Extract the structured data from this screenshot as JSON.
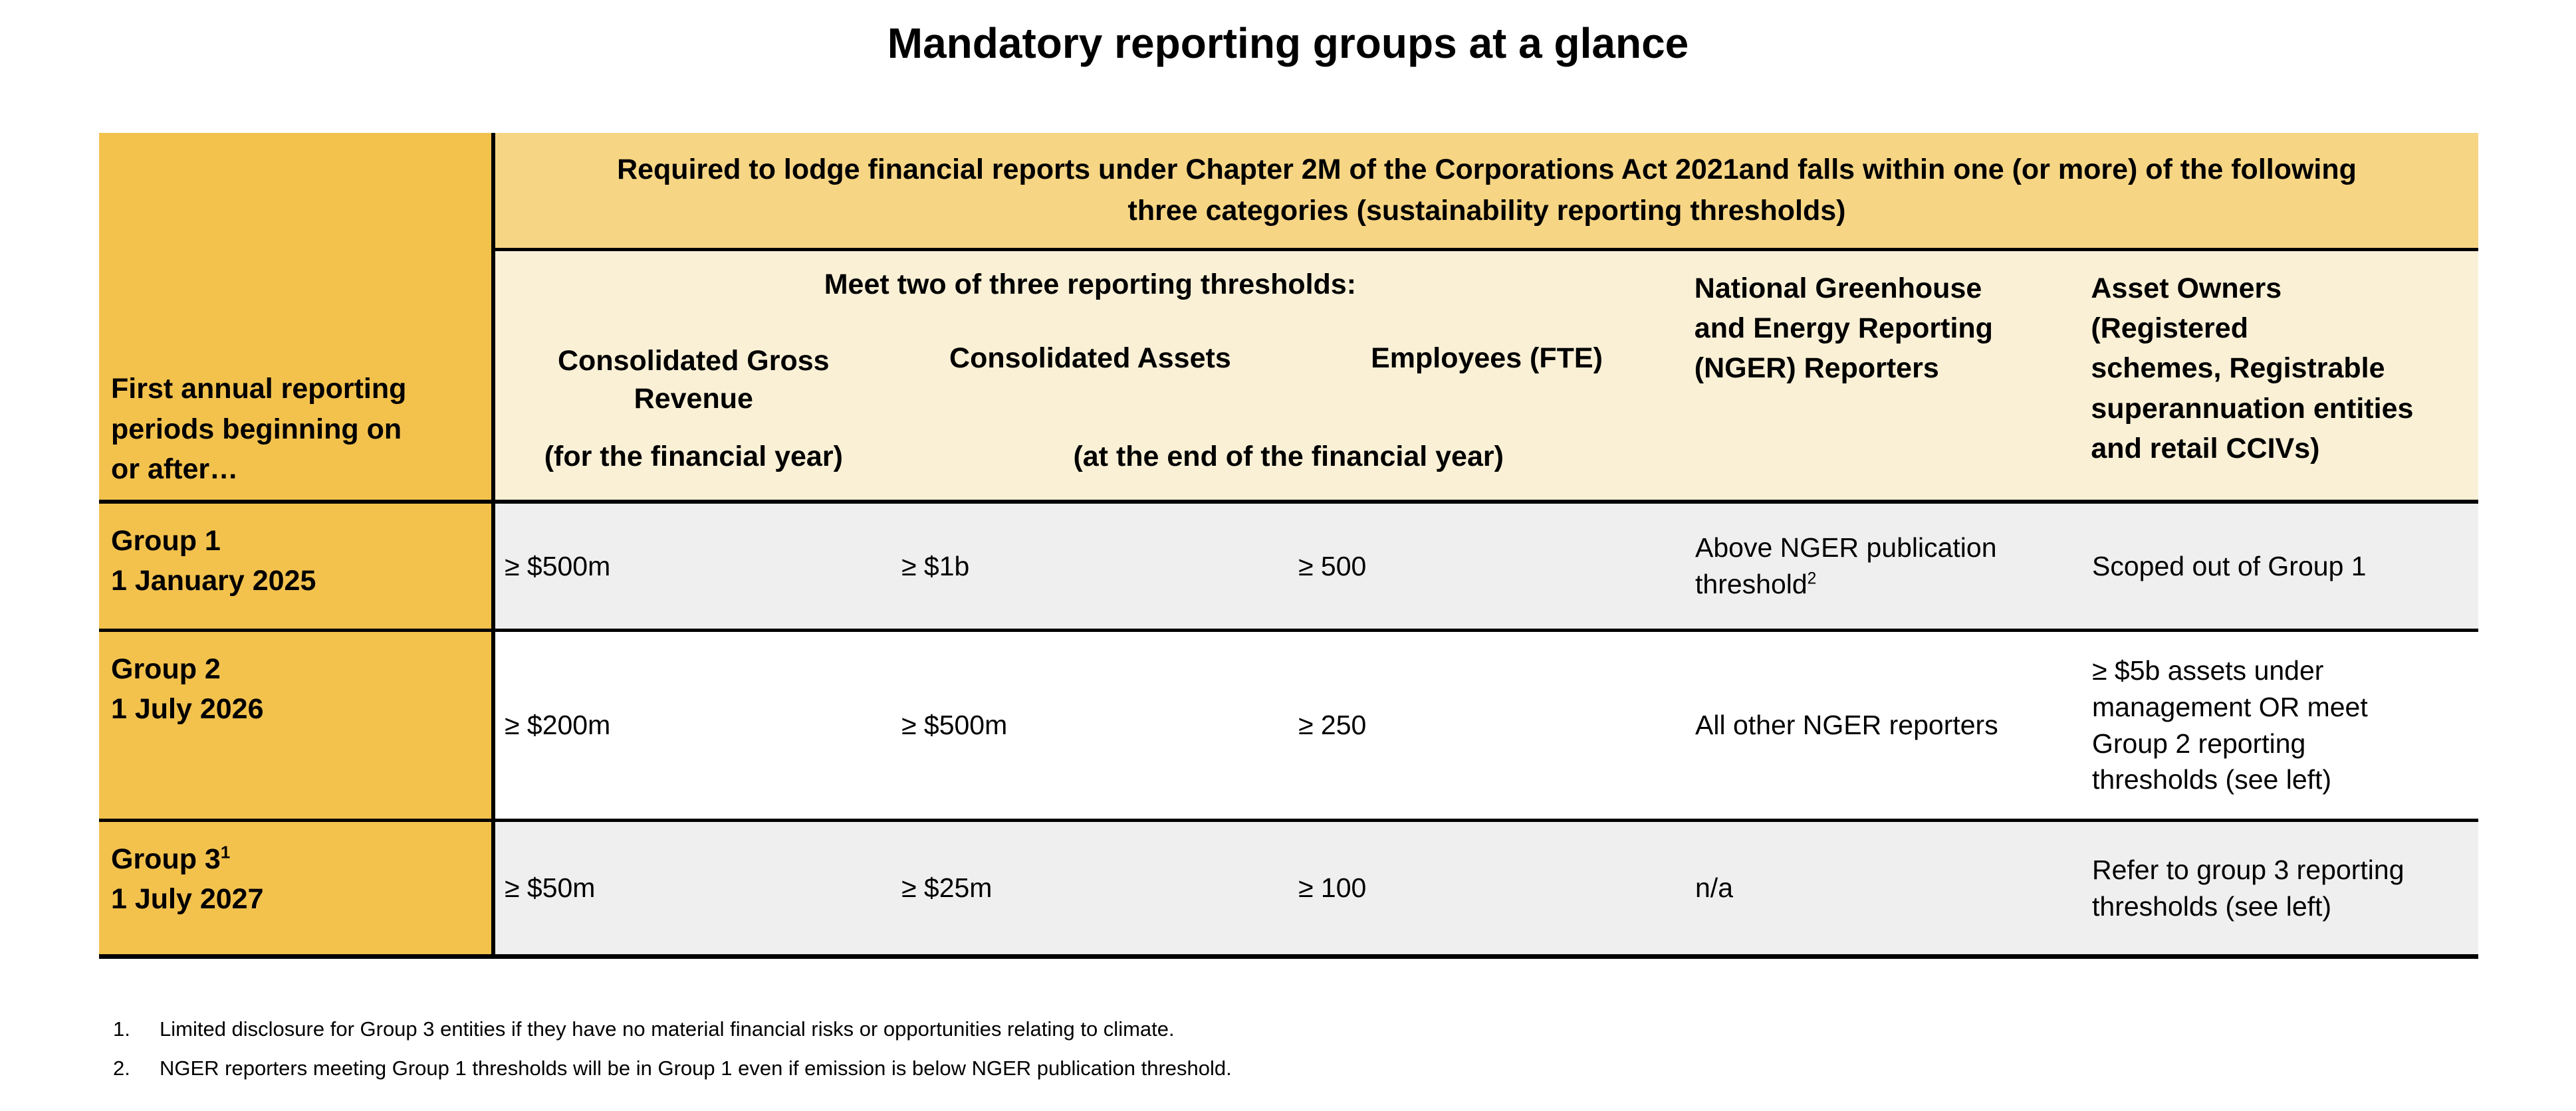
{
  "title": "Mandatory reporting groups at a glance",
  "table": {
    "axis_header_lines": [
      "First annual reporting",
      "periods beginning on",
      "or after…"
    ],
    "top_header": "Required to lodge financial reports under Chapter 2M of the Corporations Act 2021and falls within one (or more) of the following three categories (sustainability reporting thresholds)",
    "meet_header": "Meet two of three reporting thresholds:",
    "col_revenue_title": "Consolidated Gross Revenue",
    "col_revenue_note": "(for the financial year)",
    "col_assets_title": "Consolidated Assets",
    "col_employees_title": "Employees (FTE)",
    "col_assets_employees_note": "(at the end of the financial year)",
    "col_nger_lines": [
      "National Greenhouse",
      "and Energy Reporting",
      "(NGER) Reporters"
    ],
    "col_asset_owners_lines": [
      "Asset Owners",
      "(Registered",
      "schemes, Registrable",
      "superannuation entities",
      "and retail CCIVs)"
    ],
    "rows": [
      {
        "group": "Group 1",
        "date": "1 January 2025",
        "revenue": "≥ $500m",
        "assets": "≥ $1b",
        "employees": "≥ 500",
        "nger_line1": "Above NGER publication",
        "nger_line2": "threshold",
        "nger_sup": "2",
        "asset_owners": "Scoped out of Group 1"
      },
      {
        "group": "Group 2",
        "date": "1 July 2026",
        "revenue": "≥ $200m",
        "assets": "≥ $500m",
        "employees": "≥ 250",
        "nger": "All other NGER reporters",
        "asset_owners_lines": [
          "≥ $5b assets under",
          "management OR meet",
          "Group 2 reporting",
          "thresholds (see left)"
        ]
      },
      {
        "group": "Group 3",
        "group_sup": "1",
        "date": "1 July 2027",
        "revenue": "≥ $50m",
        "assets": "≥ $25m",
        "employees": "≥ 100",
        "nger": "n/a",
        "asset_owners_lines": [
          "Refer to group 3 reporting",
          "thresholds (see left)"
        ]
      }
    ]
  },
  "footnotes": [
    {
      "num": "1.",
      "text": "Limited disclosure for Group 3 entities if they have no material financial risks or opportunities relating to climate."
    },
    {
      "num": "2.",
      "text": "NGER reporters meeting Group 1 thresholds will be in Group 1 even if emission is below NGER publication threshold."
    }
  ],
  "colors": {
    "row_header_orange": "#F3C24D",
    "top_header_orange": "#F6D584",
    "subheader_cream": "#FAF0D6",
    "row_gray": "#EFEFEF",
    "row_white": "#FFFFFF",
    "rule_black": "#000000"
  }
}
